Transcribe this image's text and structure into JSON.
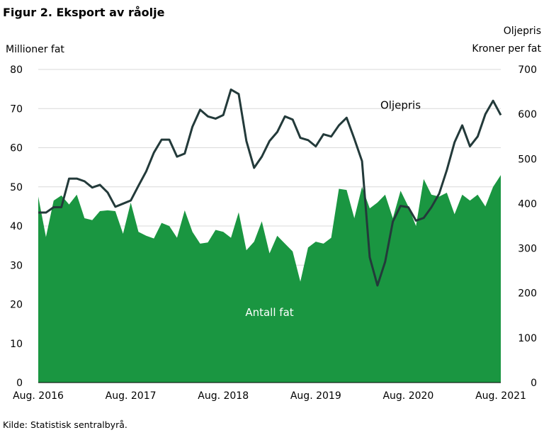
{
  "figure": {
    "title": "Figur 2. Eksport av råolje",
    "source": "Kilde: Statistisk sentralbyrå."
  },
  "chart_data": {
    "type": "area",
    "title": "Figur 2. Eksport av råolje",
    "left_axis": {
      "unit_label": "Millioner fat",
      "ylim": [
        0,
        80
      ],
      "ticks": [
        0,
        10,
        20,
        30,
        40,
        50,
        60,
        70,
        80
      ]
    },
    "right_axis": {
      "title": "Oljepris",
      "unit_label": "Kroner per fat",
      "ylim": [
        0,
        700
      ],
      "ticks": [
        0,
        100,
        200,
        300,
        400,
        500,
        600,
        700
      ]
    },
    "x_tick_labels": [
      "Aug. 2016",
      "Aug. 2017",
      "Aug. 2018",
      "Aug. 2019",
      "Aug. 2020",
      "Aug. 2021"
    ],
    "x_range": [
      "2016-08",
      "2021-08"
    ],
    "grid": "horizontal",
    "annotations": [
      {
        "text": "Antall fat",
        "series": "Antall fat"
      },
      {
        "text": "Oljepris",
        "series": "Oljepris"
      }
    ],
    "x": [
      "2016-08",
      "2016-09",
      "2016-10",
      "2016-11",
      "2016-12",
      "2017-01",
      "2017-02",
      "2017-03",
      "2017-04",
      "2017-05",
      "2017-06",
      "2017-07",
      "2017-08",
      "2017-09",
      "2017-10",
      "2017-11",
      "2017-12",
      "2018-01",
      "2018-02",
      "2018-03",
      "2018-04",
      "2018-05",
      "2018-06",
      "2018-07",
      "2018-08",
      "2018-09",
      "2018-10",
      "2018-11",
      "2018-12",
      "2019-01",
      "2019-02",
      "2019-03",
      "2019-04",
      "2019-05",
      "2019-06",
      "2019-07",
      "2019-08",
      "2019-09",
      "2019-10",
      "2019-11",
      "2019-12",
      "2020-01",
      "2020-02",
      "2020-03",
      "2020-04",
      "2020-05",
      "2020-06",
      "2020-07",
      "2020-08",
      "2020-09",
      "2020-10",
      "2020-11",
      "2020-12",
      "2021-01",
      "2021-02",
      "2021-03",
      "2021-04",
      "2021-05",
      "2021-06",
      "2021-07",
      "2021-08"
    ],
    "series": [
      {
        "name": "Antall fat",
        "axis": "left",
        "type": "area",
        "color": "#1a9641",
        "values": [
          47.5,
          37.2,
          46.5,
          47.8,
          45.5,
          48.0,
          42.0,
          41.5,
          43.8,
          44.0,
          43.8,
          38.0,
          46.0,
          38.5,
          37.5,
          36.8,
          40.8,
          40.0,
          37.0,
          44.0,
          38.5,
          35.5,
          35.8,
          39.0,
          38.5,
          37.0,
          43.5,
          33.8,
          36.0,
          41.2,
          33.0,
          37.5,
          35.5,
          33.5,
          25.8,
          34.5,
          36.0,
          35.5,
          37.0,
          49.5,
          49.2,
          42.0,
          50.0,
          44.5,
          46.0,
          48.0,
          42.0,
          49.0,
          45.0,
          40.0,
          52.0,
          48.0,
          47.5,
          48.5,
          43.0,
          48.0,
          46.5,
          48.0,
          45.0,
          50.0,
          53.0
        ]
      },
      {
        "name": "Oljepris",
        "axis": "right",
        "type": "line",
        "color": "#233a3a",
        "values": [
          380,
          380,
          392,
          392,
          456,
          456,
          450,
          436,
          442,
          425,
          393,
          400,
          407,
          440,
          472,
          514,
          543,
          543,
          505,
          512,
          572,
          610,
          595,
          590,
          598,
          655,
          645,
          540,
          480,
          505,
          540,
          560,
          595,
          588,
          547,
          542,
          528,
          555,
          550,
          575,
          592,
          545,
          495,
          280,
          217,
          270,
          360,
          395,
          392,
          362,
          368,
          392,
          422,
          475,
          537,
          575,
          528,
          550,
          600,
          630,
          598
        ]
      }
    ]
  }
}
